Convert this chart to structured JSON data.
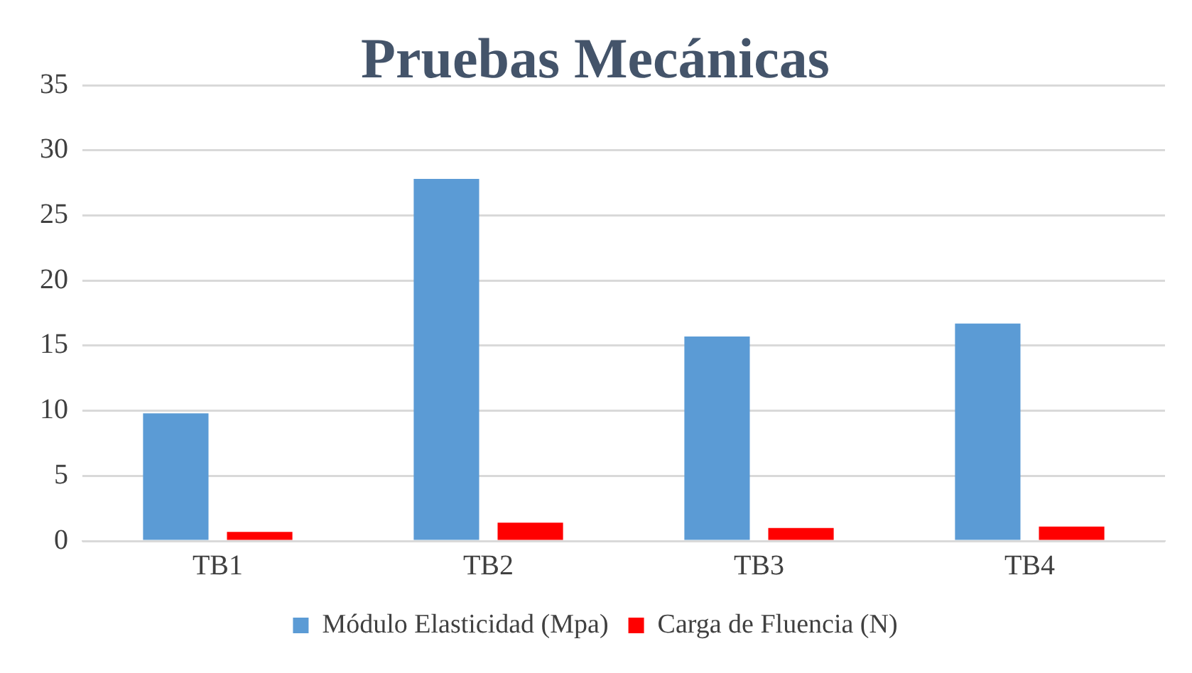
{
  "chart_data": {
    "type": "bar",
    "title": "Pruebas Mecánicas",
    "categories": [
      "TB1",
      "TB2",
      "TB3",
      "TB4"
    ],
    "series": [
      {
        "name": "Módulo Elasticidad (Mpa)",
        "color": "#5b9bd5",
        "values": [
          9.8,
          27.8,
          15.7,
          16.7
        ]
      },
      {
        "name": "Carga de Fluencia (N)",
        "color": "#ff0000",
        "values": [
          0.7,
          1.4,
          1.0,
          1.1
        ]
      }
    ],
    "ylim": [
      0,
      35
    ],
    "yticks": [
      0,
      5,
      10,
      15,
      20,
      25,
      30,
      35
    ],
    "grid": "y",
    "legend": "bottom"
  }
}
